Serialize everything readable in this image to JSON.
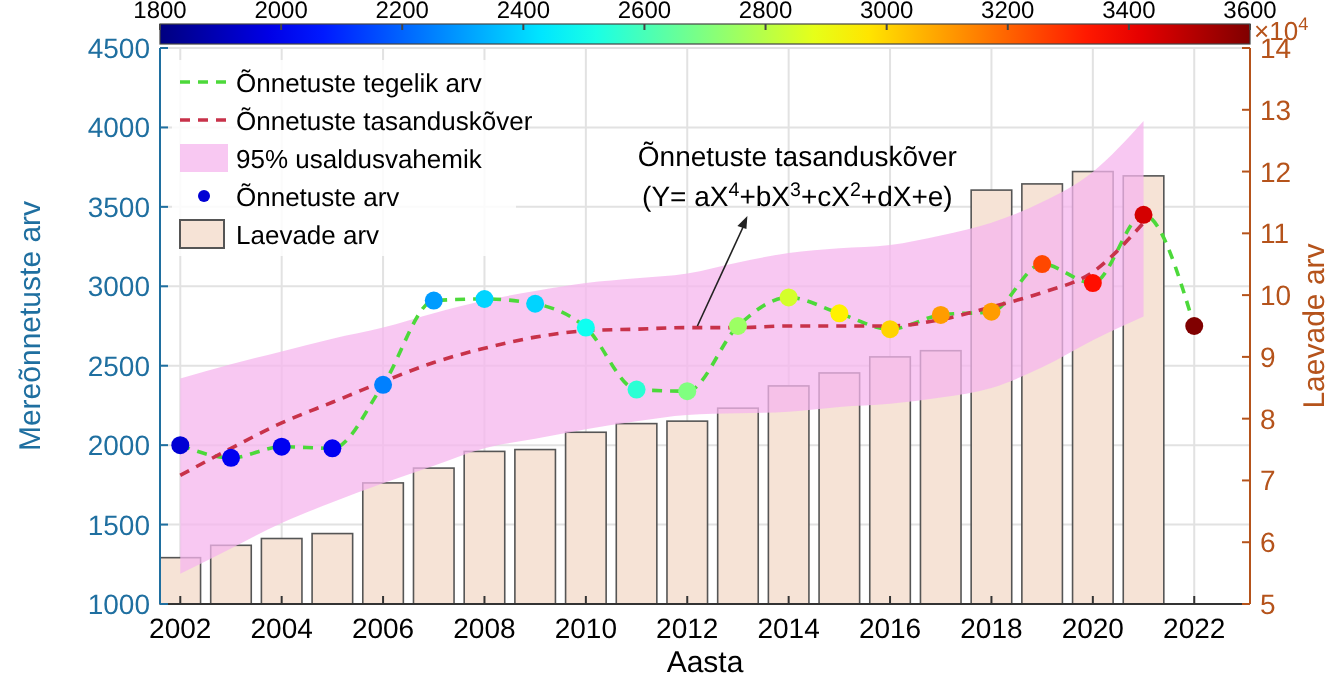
{
  "chart_data": {
    "type": "scatter",
    "xlabel": "Aasta",
    "ylabel": "Mereõnnetuste arv",
    "y2label": "Laevade arv",
    "xlim": [
      2001.6,
      2023.1
    ],
    "xticks": [
      2002,
      2004,
      2006,
      2008,
      2010,
      2012,
      2014,
      2016,
      2018,
      2020,
      2022
    ],
    "ylim": [
      1000,
      4500
    ],
    "yticks": [
      1000,
      1500,
      2000,
      2500,
      3000,
      3500,
      4000,
      4500
    ],
    "y2lim": [
      5,
      14
    ],
    "y2ticks": [
      5,
      6,
      7,
      8,
      9,
      10,
      11,
      12,
      13,
      14
    ],
    "clim": [
      1800,
      3600
    ],
    "cticks": [
      1800,
      2000,
      2200,
      2400,
      2600,
      2800,
      3000,
      3200,
      3400,
      3600
    ],
    "grid": true,
    "legend": "top left",
    "annotations": [
      "×10$^{4}$",
      {
        "text": "Õnnetuste tasanduskõver\n(Y= aX$^{4}$+bX$^{3}$+cX$^{2}$+dX+e)",
        "x": 2012.2,
        "y": 2750
      },
      "95% usaldusvahemik"
    ],
    "series": [
      {
        "name": "Õnnetuste tegelik arv",
        "type": "line",
        "line_style": "dashed",
        "marker": "none",
        "color": "#4cd93a",
        "x": [
          2002,
          2003,
          2004,
          2005,
          2006,
          2007,
          2008,
          2009,
          2010,
          2011,
          2012,
          2013,
          2014,
          2015,
          2016,
          2017,
          2018,
          2019,
          2020,
          2021,
          2022
        ],
        "values": [
          2000,
          1920,
          1990,
          1980,
          2380,
          2910,
          2920,
          2890,
          2740,
          2350,
          2340,
          2750,
          2930,
          2830,
          2730,
          2820,
          2840,
          3140,
          3020,
          3450,
          2750
        ]
      },
      {
        "name": "Õnnetuste tasanduskõver",
        "type": "line",
        "line_style": "dashed",
        "marker": "none",
        "color": "#c8324a",
        "x": [
          2002,
          2003,
          2004,
          2005,
          2006,
          2007,
          2008,
          2009,
          2010,
          2011,
          2012,
          2013,
          2014,
          2015,
          2016,
          2017,
          2018,
          2019,
          2020,
          2021
        ],
        "values": [
          1810,
          1980,
          2140,
          2270,
          2400,
          2520,
          2610,
          2680,
          2720,
          2730,
          2740,
          2740,
          2750,
          2750,
          2750,
          2790,
          2870,
          2960,
          3090,
          3400
        ],
        "upper": [
          2420,
          2510,
          2590,
          2670,
          2740,
          2830,
          2910,
          2970,
          3020,
          3050,
          3080,
          3150,
          3210,
          3240,
          3260,
          3320,
          3400,
          3530,
          3720,
          4040
        ],
        "lower": [
          1190,
          1350,
          1510,
          1640,
          1760,
          1870,
          1980,
          2040,
          2100,
          2150,
          2190,
          2200,
          2210,
          2240,
          2260,
          2300,
          2360,
          2490,
          2660,
          2810
        ]
      },
      {
        "name": "Õnnetuste arv",
        "marker": "circle",
        "x": [
          2002,
          2003,
          2004,
          2005,
          2006,
          2007,
          2008,
          2009,
          2010,
          2011,
          2012,
          2013,
          2014,
          2015,
          2016,
          2017,
          2018,
          2019,
          2020,
          2021,
          2022
        ],
        "values": [
          2000,
          1920,
          1990,
          1980,
          2380,
          2910,
          2920,
          2890,
          2740,
          2350,
          2340,
          2750,
          2930,
          2830,
          2730,
          2820,
          2840,
          3140,
          3020,
          3450,
          2750
        ],
        "colors": [
          "#0000d4",
          "#0000f1",
          "#0000f1",
          "#0000f1",
          "#0080ff",
          "#009cff",
          "#00d4ff",
          "#00d4ff",
          "#0efff1",
          "#2bffd4",
          "#80ff80",
          "#9cff63",
          "#d4ff2b",
          "#fff100",
          "#ffd400",
          "#ff9c00",
          "#ff9c00",
          "#ff4700",
          "#ff0e00",
          "#d40000",
          "#800000"
        ]
      },
      {
        "name": "Laevade arv",
        "type": "bar",
        "axis": "y2",
        "color": "#f6e3d6",
        "x": [
          2002,
          2003,
          2004,
          2005,
          2006,
          2007,
          2008,
          2009,
          2010,
          2011,
          2012,
          2013,
          2014,
          2015,
          2016,
          2017,
          2018,
          2019,
          2020,
          2021
        ],
        "values": [
          5.75,
          5.95,
          6.06,
          6.14,
          6.96,
          7.2,
          7.47,
          7.5,
          7.78,
          7.92,
          7.96,
          8.17,
          8.53,
          8.74,
          9.0,
          9.1,
          11.7,
          11.8,
          12.0,
          11.93
        ]
      }
    ]
  }
}
